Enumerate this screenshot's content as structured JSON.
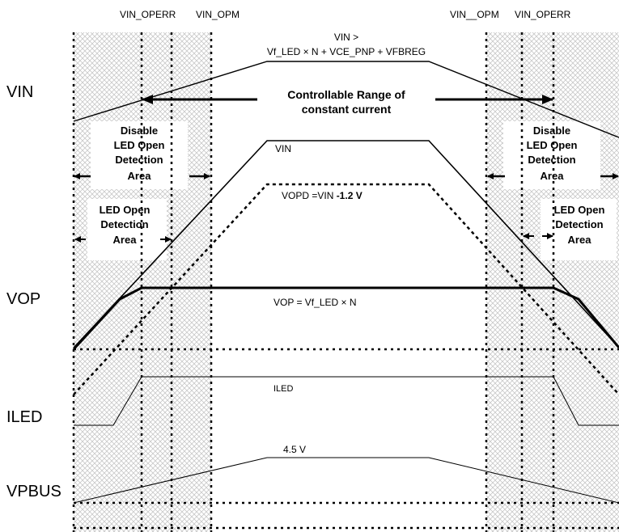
{
  "top_labels": {
    "vin_operr_left": "VIN_OPERR",
    "vin_opm_left": "VIN_OPM",
    "vin_opm_right": "VIN__OPM",
    "vin_operr_right": "VIN_OPERR"
  },
  "row_labels": {
    "vin": "VIN",
    "vop": "VOP",
    "iled": "ILED",
    "vpbus": "VPBUS"
  },
  "formula": {
    "line1": "VIN >",
    "line2": "Vf_LED × N + VCE_PNP + VFBREG"
  },
  "controllable_range": {
    "line1": "Controllable Range of",
    "line2": "constant current"
  },
  "disable_area_left": [
    "Disable",
    "LED Open",
    "Detection",
    "Area"
  ],
  "disable_area_right": [
    "Disable",
    "LED Open",
    "Detection",
    "Area"
  ],
  "detect_area_left": [
    "LED Open",
    "Detection",
    "Area"
  ],
  "detect_area_right": [
    "LED Open",
    "Detection",
    "Area"
  ],
  "curve_labels": {
    "vin_curve": "VIN",
    "vopd_prefix": "VOPD =VIN ",
    "vopd_suffix": "-1.2 V",
    "vop_curve": "VOP = Vf_LED × N",
    "iled_curve": "ILED",
    "vpbus_level": "4.5 V"
  },
  "colors": {
    "line": "#000000",
    "hatch": "#c8c8c8",
    "box_fill": "#ffffff"
  }
}
